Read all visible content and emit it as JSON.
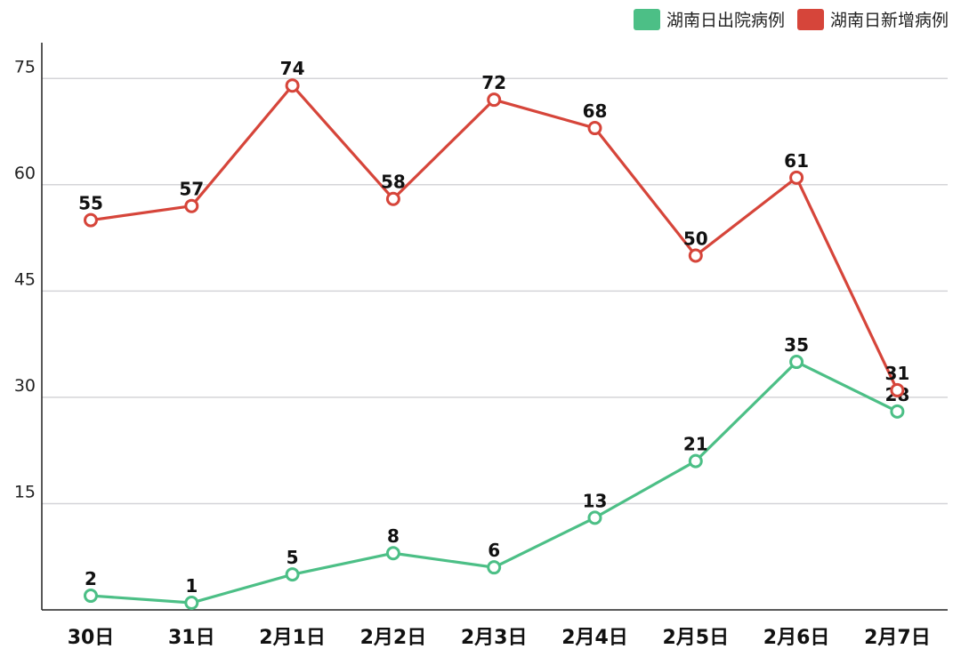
{
  "chart_data": {
    "type": "line",
    "categories": [
      "30日",
      "31日",
      "2月1日",
      "2月2日",
      "2月3日",
      "2月4日",
      "2月5日",
      "2月6日",
      "2月7日"
    ],
    "series": [
      {
        "name": "湖南日出院病例",
        "color": "#4cbf86",
        "values": [
          2,
          1,
          5,
          8,
          6,
          13,
          21,
          35,
          28
        ]
      },
      {
        "name": "湖南日新增病例",
        "color": "#d6453a",
        "values": [
          55,
          57,
          74,
          58,
          72,
          68,
          50,
          61,
          31
        ]
      }
    ],
    "y_ticks": [
      "15",
      "30",
      "45",
      "60",
      "75"
    ],
    "ylim": [
      0,
      81
    ],
    "grid": true,
    "legend_position": "top-right"
  }
}
